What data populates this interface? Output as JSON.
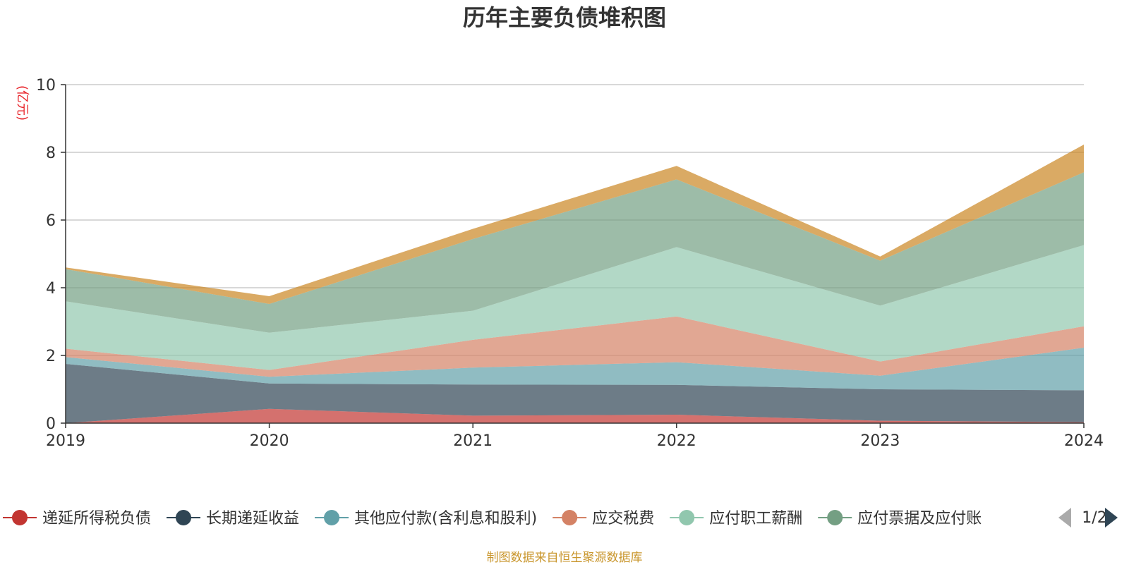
{
  "chart_data": {
    "type": "area",
    "stacked": true,
    "title": "历年主要负债堆积图",
    "unit_label": "(亿元)",
    "x": [
      "2019",
      "2020",
      "2021",
      "2022",
      "2023",
      "2024"
    ],
    "ylim": [
      0,
      10
    ],
    "yticks": [
      0,
      2,
      4,
      6,
      8,
      10
    ],
    "grid": true,
    "series": [
      {
        "name": "递延所得税负债",
        "color": "#c23531",
        "values": [
          0.0,
          0.42,
          0.22,
          0.25,
          0.07,
          0.03
        ]
      },
      {
        "name": "长期递延收益",
        "color": "#2f4554",
        "values": [
          1.75,
          0.75,
          0.92,
          0.88,
          0.93,
          0.94
        ]
      },
      {
        "name": "其他应付款(含利息和股利)",
        "color": "#61a0a8",
        "values": [
          0.2,
          0.2,
          0.5,
          0.67,
          0.4,
          1.26
        ]
      },
      {
        "name": "应交税费",
        "color": "#d48265",
        "values": [
          0.25,
          0.2,
          0.82,
          1.35,
          0.42,
          0.63
        ]
      },
      {
        "name": "应付职工薪酬",
        "color": "#91c7ae",
        "values": [
          1.4,
          1.1,
          0.86,
          2.05,
          1.65,
          2.4
        ]
      },
      {
        "name": "应付票据及应付账款",
        "color": "#749f83",
        "values": [
          0.95,
          0.85,
          2.12,
          2.0,
          1.33,
          2.15
        ]
      },
      {
        "name": "",
        "color": "#ca8622",
        "values": [
          0.05,
          0.23,
          0.3,
          0.4,
          0.12,
          0.82
        ]
      }
    ],
    "legend": {
      "position": "bottom",
      "visible_items": [
        "递延所得税负债",
        "长期递延收益",
        "其他应付款(含利息和股利)",
        "应交税费",
        "应付职工薪酬",
        "应付票据及应付账"
      ],
      "page": "1/2"
    },
    "source_note": "制图数据来自恒生聚源数据库"
  }
}
